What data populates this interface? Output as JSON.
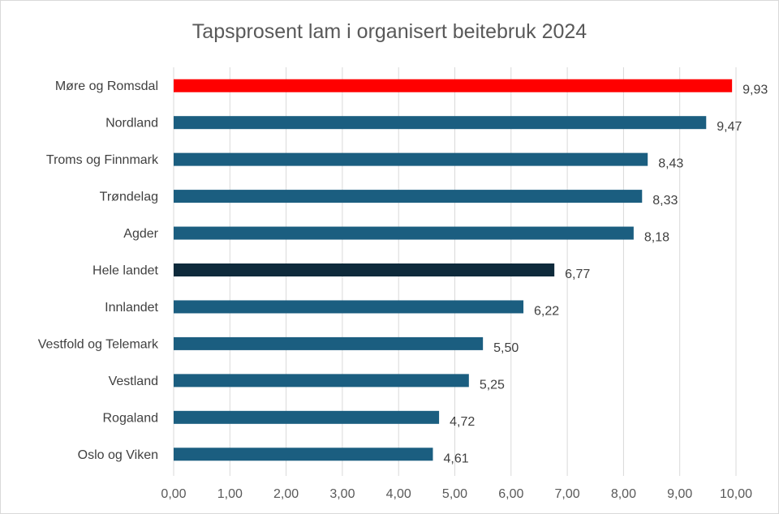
{
  "chart_data": {
    "type": "bar",
    "orientation": "horizontal",
    "title": "Tapsprosent lam i organisert beitebruk 2024",
    "xlabel": "",
    "ylabel": "",
    "categories": [
      "Møre og Romsdal",
      "Nordland",
      "Troms og Finnmark",
      "Trøndelag",
      "Agder",
      "Hele landet",
      "Innlandet",
      "Vestfold og Telemark",
      "Vestland",
      "Rogaland",
      "Oslo og Viken"
    ],
    "values": [
      9.93,
      9.47,
      8.43,
      8.33,
      8.18,
      6.77,
      6.22,
      5.5,
      5.25,
      4.72,
      4.61
    ],
    "data_labels": [
      "9,93",
      "9,47",
      "8,43",
      "8,33",
      "8,18",
      "6,77",
      "6,22",
      "5,50",
      "5,25",
      "4,72",
      "4,61"
    ],
    "bar_colors": [
      "#ff0000",
      "#1b5e80",
      "#1b5e80",
      "#1b5e80",
      "#1b5e80",
      "#0e2a3b",
      "#1b5e80",
      "#1b5e80",
      "#1b5e80",
      "#1b5e80",
      "#1b5e80"
    ],
    "xlim": [
      0,
      10
    ],
    "x_ticks": [
      0,
      1,
      2,
      3,
      4,
      5,
      6,
      7,
      8,
      9,
      10
    ],
    "x_tick_labels": [
      "0,00",
      "1,00",
      "2,00",
      "3,00",
      "4,00",
      "5,00",
      "6,00",
      "7,00",
      "8,00",
      "9,00",
      "10,00"
    ],
    "grid": "vertical",
    "legend": "none"
  }
}
